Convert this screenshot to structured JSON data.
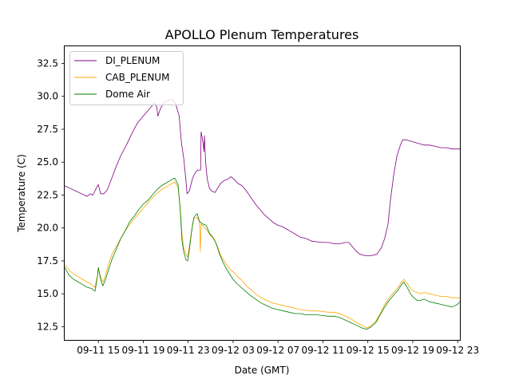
{
  "chart_data": {
    "type": "line",
    "title": "APOLLO Plenum Temperatures",
    "xlabel": "Date (GMT)",
    "ylabel": "Temperature (C)",
    "x_unit": "hours since 09-11 00:00 GMT",
    "xlim": [
      12.0,
      47.2
    ],
    "ylim": [
      11.5,
      33.8
    ],
    "x_ticks": [
      {
        "x": 15,
        "label": "09-11 15"
      },
      {
        "x": 19,
        "label": "09-11 19"
      },
      {
        "x": 23,
        "label": "09-11 23"
      },
      {
        "x": 27,
        "label": "09-12 03"
      },
      {
        "x": 31,
        "label": "09-12 07"
      },
      {
        "x": 35,
        "label": "09-12 11"
      },
      {
        "x": 39,
        "label": "09-12 15"
      },
      {
        "x": 43,
        "label": "09-12 19"
      },
      {
        "x": 47,
        "label": "09-12 23"
      }
    ],
    "y_ticks": [
      {
        "y": 12.5,
        "label": "12.5"
      },
      {
        "y": 15.0,
        "label": "15.0"
      },
      {
        "y": 17.5,
        "label": "17.5"
      },
      {
        "y": 20.0,
        "label": "20.0"
      },
      {
        "y": 22.5,
        "label": "22.5"
      },
      {
        "y": 25.0,
        "label": "25.0"
      },
      {
        "y": 27.5,
        "label": "27.5"
      },
      {
        "y": 30.0,
        "label": "30.0"
      },
      {
        "y": 32.5,
        "label": "32.5"
      }
    ],
    "legend_position": "top-left",
    "series": [
      {
        "name": "DI_PLENUM",
        "color": "#800080",
        "points": [
          [
            12.0,
            23.2
          ],
          [
            12.5,
            23.0
          ],
          [
            13.0,
            22.8
          ],
          [
            13.5,
            22.6
          ],
          [
            14.0,
            22.4
          ],
          [
            14.3,
            22.6
          ],
          [
            14.5,
            22.5
          ],
          [
            14.8,
            23.0
          ],
          [
            15.0,
            23.3
          ],
          [
            15.2,
            22.6
          ],
          [
            15.5,
            22.6
          ],
          [
            15.8,
            22.9
          ],
          [
            16.2,
            23.8
          ],
          [
            16.6,
            24.7
          ],
          [
            17.0,
            25.5
          ],
          [
            17.5,
            26.3
          ],
          [
            18.0,
            27.2
          ],
          [
            18.5,
            28.0
          ],
          [
            19.0,
            28.5
          ],
          [
            19.5,
            29.0
          ],
          [
            20.0,
            29.5
          ],
          [
            20.2,
            29.2
          ],
          [
            20.3,
            28.5
          ],
          [
            20.5,
            29.0
          ],
          [
            20.8,
            29.5
          ],
          [
            21.2,
            29.7
          ],
          [
            21.6,
            29.8
          ],
          [
            21.9,
            29.4
          ],
          [
            22.2,
            28.5
          ],
          [
            22.4,
            26.5
          ],
          [
            22.6,
            25.3
          ],
          [
            22.8,
            23.6
          ],
          [
            22.9,
            22.6
          ],
          [
            23.1,
            22.8
          ],
          [
            23.4,
            23.8
          ],
          [
            23.7,
            24.3
          ],
          [
            23.9,
            24.4
          ],
          [
            24.1,
            24.4
          ],
          [
            24.15,
            27.3
          ],
          [
            24.3,
            26.6
          ],
          [
            24.4,
            25.8
          ],
          [
            24.45,
            27.0
          ],
          [
            24.55,
            25.0
          ],
          [
            24.7,
            23.7
          ],
          [
            24.9,
            23.0
          ],
          [
            25.1,
            22.8
          ],
          [
            25.4,
            22.7
          ],
          [
            25.6,
            23.0
          ],
          [
            25.9,
            23.4
          ],
          [
            26.2,
            23.6
          ],
          [
            26.5,
            23.7
          ],
          [
            26.8,
            23.9
          ],
          [
            27.1,
            23.7
          ],
          [
            27.4,
            23.4
          ],
          [
            27.8,
            23.2
          ],
          [
            28.2,
            22.8
          ],
          [
            28.6,
            22.3
          ],
          [
            29.0,
            21.8
          ],
          [
            29.4,
            21.4
          ],
          [
            29.8,
            21.0
          ],
          [
            30.2,
            20.7
          ],
          [
            30.6,
            20.4
          ],
          [
            31.0,
            20.2
          ],
          [
            31.4,
            20.1
          ],
          [
            31.8,
            19.9
          ],
          [
            32.2,
            19.7
          ],
          [
            32.6,
            19.5
          ],
          [
            33.0,
            19.3
          ],
          [
            33.5,
            19.2
          ],
          [
            34.0,
            19.0
          ],
          [
            34.5,
            18.95
          ],
          [
            35.0,
            18.9
          ],
          [
            35.5,
            18.9
          ],
          [
            36.0,
            18.8
          ],
          [
            36.5,
            18.8
          ],
          [
            37.0,
            18.9
          ],
          [
            37.3,
            18.9
          ],
          [
            37.6,
            18.6
          ],
          [
            37.9,
            18.3
          ],
          [
            38.3,
            18.0
          ],
          [
            38.8,
            17.9
          ],
          [
            39.3,
            17.9
          ],
          [
            39.8,
            18.0
          ],
          [
            40.2,
            18.5
          ],
          [
            40.5,
            19.2
          ],
          [
            40.8,
            20.3
          ],
          [
            41.0,
            22.0
          ],
          [
            41.3,
            24.0
          ],
          [
            41.6,
            25.5
          ],
          [
            41.9,
            26.3
          ],
          [
            42.1,
            26.7
          ],
          [
            42.4,
            26.7
          ],
          [
            42.8,
            26.6
          ],
          [
            43.2,
            26.5
          ],
          [
            43.6,
            26.4
          ],
          [
            44.0,
            26.3
          ],
          [
            44.5,
            26.3
          ],
          [
            45.0,
            26.2
          ],
          [
            45.5,
            26.1
          ],
          [
            46.0,
            26.1
          ],
          [
            46.5,
            26.0
          ],
          [
            47.2,
            26.0
          ]
        ]
      },
      {
        "name": "CAB_PLENUM",
        "color": "#FFA500",
        "points": [
          [
            12.0,
            17.2
          ],
          [
            12.4,
            16.8
          ],
          [
            12.8,
            16.5
          ],
          [
            13.2,
            16.3
          ],
          [
            13.6,
            16.1
          ],
          [
            14.0,
            15.9
          ],
          [
            14.4,
            15.7
          ],
          [
            14.7,
            15.5
          ],
          [
            14.9,
            16.3
          ],
          [
            15.0,
            16.9
          ],
          [
            15.2,
            16.3
          ],
          [
            15.4,
            15.9
          ],
          [
            15.6,
            16.3
          ],
          [
            15.9,
            17.2
          ],
          [
            16.2,
            18.0
          ],
          [
            16.6,
            18.6
          ],
          [
            17.0,
            19.2
          ],
          [
            17.4,
            19.8
          ],
          [
            17.8,
            20.3
          ],
          [
            18.2,
            20.7
          ],
          [
            18.6,
            21.1
          ],
          [
            19.0,
            21.5
          ],
          [
            19.4,
            21.9
          ],
          [
            19.8,
            22.3
          ],
          [
            20.2,
            22.6
          ],
          [
            20.6,
            22.9
          ],
          [
            21.0,
            23.1
          ],
          [
            21.4,
            23.3
          ],
          [
            21.8,
            23.5
          ],
          [
            22.1,
            23.1
          ],
          [
            22.3,
            21.5
          ],
          [
            22.45,
            19.5
          ],
          [
            22.6,
            18.5
          ],
          [
            22.8,
            18.0
          ],
          [
            22.95,
            17.8
          ],
          [
            23.1,
            18.6
          ],
          [
            23.3,
            19.8
          ],
          [
            23.5,
            20.7
          ],
          [
            23.8,
            20.8
          ],
          [
            24.0,
            20.5
          ],
          [
            24.08,
            18.2
          ],
          [
            24.15,
            20.3
          ],
          [
            24.4,
            20.1
          ],
          [
            24.7,
            19.8
          ],
          [
            25.0,
            19.4
          ],
          [
            25.3,
            19.2
          ],
          [
            25.6,
            18.6
          ],
          [
            25.9,
            17.9
          ],
          [
            26.2,
            17.5
          ],
          [
            26.5,
            17.1
          ],
          [
            26.8,
            16.8
          ],
          [
            27.1,
            16.6
          ],
          [
            27.4,
            16.3
          ],
          [
            27.8,
            16.0
          ],
          [
            28.2,
            15.6
          ],
          [
            28.6,
            15.3
          ],
          [
            29.0,
            15.0
          ],
          [
            29.5,
            14.7
          ],
          [
            30.0,
            14.5
          ],
          [
            30.5,
            14.3
          ],
          [
            31.0,
            14.2
          ],
          [
            31.5,
            14.1
          ],
          [
            32.0,
            14.0
          ],
          [
            32.5,
            13.9
          ],
          [
            33.0,
            13.8
          ],
          [
            33.5,
            13.75
          ],
          [
            34.0,
            13.7
          ],
          [
            34.5,
            13.7
          ],
          [
            35.0,
            13.65
          ],
          [
            35.5,
            13.6
          ],
          [
            36.0,
            13.6
          ],
          [
            36.5,
            13.5
          ],
          [
            37.0,
            13.3
          ],
          [
            37.5,
            13.1
          ],
          [
            38.0,
            12.8
          ],
          [
            38.5,
            12.6
          ],
          [
            38.9,
            12.4
          ],
          [
            39.3,
            12.6
          ],
          [
            39.7,
            12.9
          ],
          [
            40.1,
            13.5
          ],
          [
            40.5,
            14.2
          ],
          [
            40.9,
            14.7
          ],
          [
            41.3,
            15.1
          ],
          [
            41.7,
            15.5
          ],
          [
            42.0,
            15.9
          ],
          [
            42.2,
            16.1
          ],
          [
            42.5,
            15.8
          ],
          [
            42.8,
            15.4
          ],
          [
            43.1,
            15.2
          ],
          [
            43.4,
            15.1
          ],
          [
            43.7,
            15.0
          ],
          [
            44.0,
            15.1
          ],
          [
            44.5,
            15.0
          ],
          [
            45.0,
            14.9
          ],
          [
            45.5,
            14.8
          ],
          [
            46.0,
            14.8
          ],
          [
            46.5,
            14.7
          ],
          [
            47.2,
            14.7
          ]
        ]
      },
      {
        "name": "Dome Air",
        "color": "#008000",
        "points": [
          [
            12.0,
            17.0
          ],
          [
            12.4,
            16.4
          ],
          [
            12.8,
            16.1
          ],
          [
            13.2,
            15.9
          ],
          [
            13.6,
            15.7
          ],
          [
            14.0,
            15.5
          ],
          [
            14.4,
            15.4
          ],
          [
            14.7,
            15.2
          ],
          [
            14.9,
            16.2
          ],
          [
            15.0,
            17.0
          ],
          [
            15.2,
            16.1
          ],
          [
            15.4,
            15.6
          ],
          [
            15.6,
            16.0
          ],
          [
            15.9,
            16.8
          ],
          [
            16.2,
            17.6
          ],
          [
            16.6,
            18.4
          ],
          [
            17.0,
            19.2
          ],
          [
            17.4,
            19.8
          ],
          [
            17.8,
            20.5
          ],
          [
            18.2,
            20.9
          ],
          [
            18.6,
            21.4
          ],
          [
            19.0,
            21.8
          ],
          [
            19.4,
            22.1
          ],
          [
            19.8,
            22.5
          ],
          [
            20.2,
            22.9
          ],
          [
            20.6,
            23.2
          ],
          [
            21.0,
            23.4
          ],
          [
            21.4,
            23.6
          ],
          [
            21.8,
            23.8
          ],
          [
            22.1,
            23.3
          ],
          [
            22.3,
            21.3
          ],
          [
            22.45,
            19.0
          ],
          [
            22.6,
            18.2
          ],
          [
            22.8,
            17.6
          ],
          [
            22.95,
            17.5
          ],
          [
            23.1,
            18.3
          ],
          [
            23.3,
            19.7
          ],
          [
            23.5,
            20.8
          ],
          [
            23.8,
            21.1
          ],
          [
            24.0,
            20.5
          ],
          [
            24.3,
            20.3
          ],
          [
            24.6,
            20.2
          ],
          [
            24.9,
            19.6
          ],
          [
            25.2,
            19.3
          ],
          [
            25.5,
            18.8
          ],
          [
            25.8,
            18.0
          ],
          [
            26.1,
            17.4
          ],
          [
            26.4,
            16.9
          ],
          [
            26.7,
            16.5
          ],
          [
            27.0,
            16.1
          ],
          [
            27.3,
            15.8
          ],
          [
            27.7,
            15.5
          ],
          [
            28.1,
            15.2
          ],
          [
            28.5,
            14.9
          ],
          [
            29.0,
            14.6
          ],
          [
            29.5,
            14.3
          ],
          [
            30.0,
            14.1
          ],
          [
            30.5,
            13.9
          ],
          [
            31.0,
            13.8
          ],
          [
            31.5,
            13.7
          ],
          [
            32.0,
            13.6
          ],
          [
            32.5,
            13.5
          ],
          [
            33.0,
            13.5
          ],
          [
            33.5,
            13.4
          ],
          [
            34.0,
            13.4
          ],
          [
            34.5,
            13.4
          ],
          [
            35.0,
            13.35
          ],
          [
            35.5,
            13.3
          ],
          [
            36.0,
            13.3
          ],
          [
            36.5,
            13.2
          ],
          [
            37.0,
            13.0
          ],
          [
            37.5,
            12.8
          ],
          [
            38.0,
            12.6
          ],
          [
            38.5,
            12.4
          ],
          [
            38.9,
            12.3
          ],
          [
            39.3,
            12.5
          ],
          [
            39.7,
            12.8
          ],
          [
            40.1,
            13.4
          ],
          [
            40.5,
            14.0
          ],
          [
            40.9,
            14.5
          ],
          [
            41.3,
            14.9
          ],
          [
            41.7,
            15.3
          ],
          [
            42.0,
            15.7
          ],
          [
            42.2,
            15.9
          ],
          [
            42.5,
            15.5
          ],
          [
            42.8,
            15.0
          ],
          [
            43.1,
            14.7
          ],
          [
            43.4,
            14.5
          ],
          [
            43.7,
            14.5
          ],
          [
            44.0,
            14.6
          ],
          [
            44.5,
            14.4
          ],
          [
            45.0,
            14.3
          ],
          [
            45.5,
            14.2
          ],
          [
            46.0,
            14.1
          ],
          [
            46.5,
            14.0
          ],
          [
            47.0,
            14.2
          ],
          [
            47.2,
            14.4
          ]
        ]
      }
    ]
  }
}
